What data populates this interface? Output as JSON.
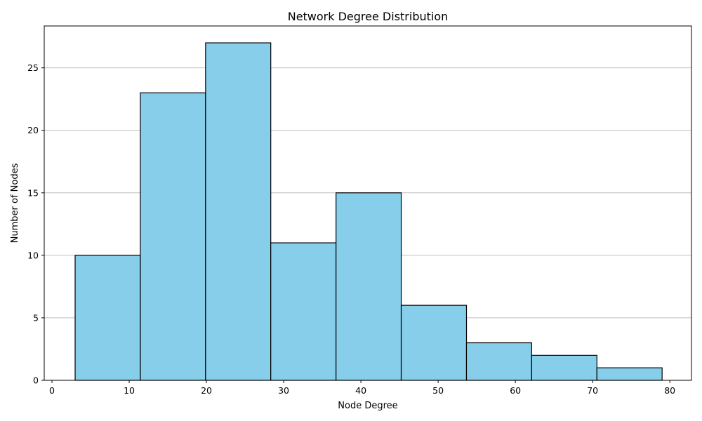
{
  "chart_data": {
    "type": "bar",
    "subtype": "histogram",
    "title": "Network Degree Distribution",
    "xlabel": "Node Degree",
    "ylabel": "Number of Nodes",
    "xlim": [
      -1,
      82.8
    ],
    "ylim": [
      0,
      28.35
    ],
    "x_ticks": [
      0,
      10,
      20,
      30,
      40,
      50,
      60,
      70,
      80
    ],
    "y_ticks": [
      0,
      5,
      10,
      15,
      20,
      25
    ],
    "bin_edges": [
      3,
      11.44,
      19.89,
      28.33,
      36.78,
      45.22,
      53.67,
      62.11,
      70.56,
      79
    ],
    "values": [
      10,
      23,
      27,
      11,
      15,
      6,
      3,
      2,
      1
    ],
    "grid": {
      "x": false,
      "y": true
    },
    "colors": {
      "bar_fill": "#87ceeb",
      "bar_edge": "#000000",
      "grid": "#c0c0c0"
    }
  }
}
